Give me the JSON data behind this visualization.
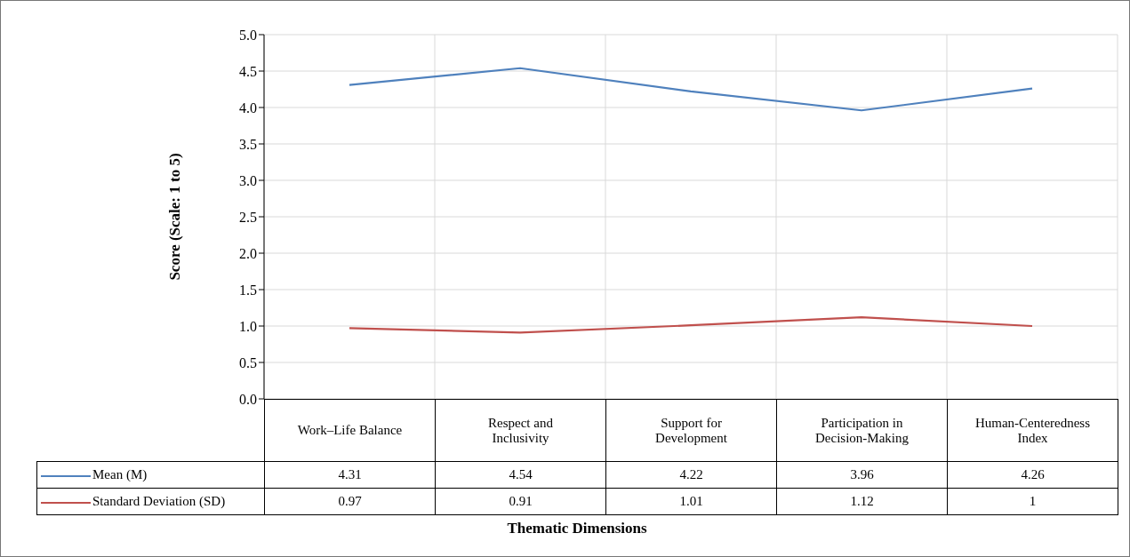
{
  "chart_data": {
    "type": "line",
    "xlabel": "Thematic Dimensions",
    "ylabel": "Score (Scale: 1 to 5)",
    "categories": [
      "Work–Life Balance",
      "Respect and Inclusivity",
      "Support for Development",
      "Participation in Decision-Making",
      "Human-Centeredness Index"
    ],
    "series": [
      {
        "name": "Mean (M)",
        "color": "#4f81bd",
        "values": [
          4.31,
          4.54,
          4.22,
          3.96,
          4.26
        ]
      },
      {
        "name": "Standard Deviation (SD)",
        "color": "#c0504d",
        "values": [
          0.97,
          0.91,
          1.01,
          1.12,
          1
        ]
      }
    ],
    "ylim": [
      0,
      5
    ],
    "yticks": [
      {
        "value": 0,
        "label": "0.0"
      },
      {
        "value": 0.5,
        "label": "0.5"
      },
      {
        "value": 1,
        "label": "1.0"
      },
      {
        "value": 1.5,
        "label": "1.5"
      },
      {
        "value": 2,
        "label": "2.0"
      },
      {
        "value": 2.5,
        "label": "2.5"
      },
      {
        "value": 3,
        "label": "3.0"
      },
      {
        "value": 3.5,
        "label": "3.5"
      },
      {
        "value": 4,
        "label": "4.0"
      },
      {
        "value": 4.5,
        "label": "4.5"
      },
      {
        "value": 5,
        "label": "5.0"
      }
    ],
    "grid": true,
    "legend": "bottom",
    "data_labels": true,
    "marker": "none",
    "line_style": "solid"
  }
}
